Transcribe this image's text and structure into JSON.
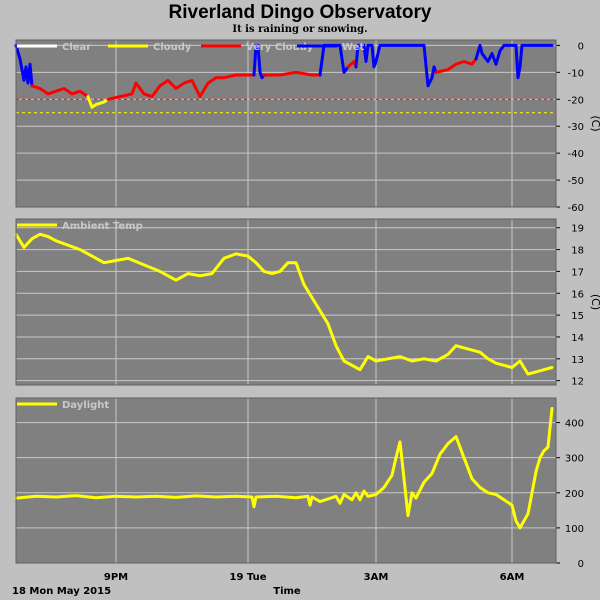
{
  "header": {
    "title": "Riverland Dingo Observatory",
    "subtitle": "It is raining or snowing."
  },
  "footer": {
    "date_label": "18 Mon May 2015",
    "xlabel": "Time"
  },
  "colors": {
    "background": "#c0c0c0",
    "plot": "#808080",
    "grid": "#c8c8c8",
    "clear": "#ffffff",
    "cloudy": "#ffff00",
    "very_cloudy": "#ff0000",
    "wet": "#0000ff",
    "ambient": "#ffff00",
    "daylight": "#ffff00"
  },
  "chart_data": [
    {
      "type": "line",
      "panel": "sky",
      "x_unit": "hours since 18:00",
      "xlim": [
        0,
        13.5
      ],
      "x_ticks": [
        {
          "x": 2.5,
          "label": "9PM"
        },
        {
          "x": 5.8,
          "label": "19 Tue"
        },
        {
          "x": 9.0,
          "label": "3AM"
        },
        {
          "x": 12.4,
          "label": "6AM"
        }
      ],
      "ylim": [
        -60,
        2
      ],
      "y_ticks": [
        0,
        -10,
        -20,
        -30,
        -40,
        -50,
        -60
      ],
      "ylabel": "(°C)",
      "ylabel_visible": "(C)",
      "thresholds": [
        {
          "value": -20,
          "color": "#ff0000"
        },
        {
          "value": -25,
          "color": "#ffff00"
        }
      ],
      "legend": [
        "Clear",
        "Cloudy",
        "Very Cloudy",
        "Wet"
      ],
      "series": [
        {
          "name": "Wet",
          "color": "#0000ff",
          "x": [
            0.0,
            0.1,
            0.2,
            0.25,
            0.3,
            0.35,
            0.4
          ],
          "y": [
            0,
            -5,
            -13,
            -8,
            -14,
            -7,
            -15
          ]
        },
        {
          "name": "Very Cloudy",
          "color": "#ff0000",
          "x": [
            0.4,
            0.6,
            0.8,
            1.0,
            1.2,
            1.4,
            1.6,
            1.8
          ],
          "y": [
            -15,
            -16,
            -18,
            -17,
            -16,
            -18,
            -17,
            -19
          ]
        },
        {
          "name": "Cloudy",
          "color": "#ffff00",
          "x": [
            1.8,
            1.9,
            2.0,
            2.2,
            2.3
          ],
          "y": [
            -19,
            -23,
            -22,
            -21,
            -20
          ]
        },
        {
          "name": "Very Cloudy",
          "color": "#ff0000",
          "x": [
            2.3,
            2.6,
            2.9,
            3.0,
            3.2,
            3.4,
            3.6,
            3.8,
            4.0,
            4.2,
            4.4,
            4.6,
            4.8,
            5.0,
            5.2,
            5.5,
            5.8,
            5.95
          ],
          "y": [
            -20,
            -19,
            -18,
            -14,
            -18,
            -19,
            -15,
            -13,
            -16,
            -14,
            -13,
            -19,
            -14,
            -12,
            -12,
            -11,
            -11,
            -11
          ]
        },
        {
          "name": "Wet",
          "color": "#0000ff",
          "x": [
            5.95,
            6.0,
            6.05,
            6.1,
            6.15,
            6.2
          ],
          "y": [
            -11,
            0,
            0,
            -10,
            -12,
            -11
          ]
        },
        {
          "name": "Very Cloudy",
          "color": "#ff0000",
          "x": [
            6.2,
            6.6,
            7.0,
            7.4,
            7.6
          ],
          "y": [
            -11,
            -11,
            -10,
            -11,
            -11
          ]
        },
        {
          "name": "Wet",
          "color": "#0000ff",
          "x": [
            7.6,
            7.7,
            8.1,
            8.2,
            8.3
          ],
          "y": [
            -11,
            0,
            0,
            -10,
            -8
          ]
        },
        {
          "name": "Very Cloudy",
          "color": "#ff0000",
          "x": [
            8.3,
            8.45,
            8.5
          ],
          "y": [
            -8,
            -6,
            -8
          ]
        },
        {
          "name": "Wet",
          "color": "#0000ff",
          "x": [
            8.5,
            8.55,
            8.7,
            8.75,
            8.8,
            8.9,
            8.95,
            9.0,
            9.1,
            9.15,
            9.2,
            10.2,
            10.3,
            10.4,
            10.45,
            10.5
          ],
          "y": [
            -8,
            0,
            0,
            -6,
            0,
            0,
            -8,
            -6,
            0,
            0,
            0,
            0,
            -15,
            -12,
            -8,
            -10
          ]
        },
        {
          "name": "Very Cloudy",
          "color": "#ff0000",
          "x": [
            10.5,
            10.8,
            11.0,
            11.2,
            11.4,
            11.5
          ],
          "y": [
            -10,
            -9,
            -7,
            -6,
            -7,
            -5
          ]
        },
        {
          "name": "Wet",
          "color": "#0000ff",
          "x": [
            11.5,
            11.6,
            11.65,
            11.7,
            11.8,
            11.9,
            12.0,
            12.1,
            12.2,
            12.5,
            12.55,
            12.6,
            12.65,
            12.7,
            13.3,
            13.4
          ],
          "y": [
            -5,
            0,
            -3,
            -4,
            -6,
            -3,
            -7,
            -2,
            0,
            0,
            -12,
            -8,
            0,
            0,
            0,
            0
          ]
        }
      ]
    },
    {
      "type": "line",
      "panel": "ambient",
      "x_unit": "hours since 18:00",
      "xlim": [
        0,
        13.5
      ],
      "ylim": [
        11.8,
        19.4
      ],
      "y_ticks": [
        12,
        13,
        14,
        15,
        16,
        17,
        18,
        19
      ],
      "ylabel": "(°C)",
      "ylabel_visible": "(C)",
      "legend": [
        "Ambient Temp"
      ],
      "series": [
        {
          "name": "Ambient Temp",
          "color": "#ffff00",
          "x": [
            0.0,
            0.2,
            0.4,
            0.6,
            0.8,
            1.0,
            1.3,
            1.6,
            1.9,
            2.2,
            2.5,
            2.8,
            3.2,
            3.6,
            4.0,
            4.3,
            4.6,
            4.9,
            5.2,
            5.5,
            5.8,
            6.0,
            6.2,
            6.4,
            6.6,
            6.8,
            7.0,
            7.2,
            7.4,
            7.6,
            7.8,
            8.0,
            8.2,
            8.4,
            8.6,
            8.8,
            9.0,
            9.3,
            9.6,
            9.9,
            10.2,
            10.5,
            10.8,
            11.0,
            11.2,
            11.4,
            11.6,
            11.8,
            12.0,
            12.2,
            12.4,
            12.6,
            12.8,
            13.0,
            13.2,
            13.4
          ],
          "y": [
            18.7,
            18.1,
            18.5,
            18.7,
            18.6,
            18.4,
            18.2,
            18.0,
            17.7,
            17.4,
            17.5,
            17.6,
            17.3,
            17.0,
            16.6,
            16.9,
            16.8,
            16.9,
            17.6,
            17.8,
            17.7,
            17.4,
            17.0,
            16.9,
            17.0,
            17.4,
            17.4,
            16.4,
            15.8,
            15.2,
            14.6,
            13.6,
            12.9,
            12.7,
            12.5,
            13.1,
            12.9,
            13.0,
            13.1,
            12.9,
            13.0,
            12.9,
            13.2,
            13.6,
            13.5,
            13.4,
            13.3,
            13.0,
            12.8,
            12.7,
            12.6,
            12.9,
            12.3,
            12.4,
            12.5,
            12.6
          ]
        }
      ]
    },
    {
      "type": "line",
      "panel": "daylight",
      "x_unit": "hours since 18:00",
      "xlim": [
        0,
        13.5
      ],
      "ylim": [
        0,
        470
      ],
      "y_ticks": [
        0,
        100,
        200,
        300,
        400
      ],
      "legend": [
        "Daylight"
      ],
      "series": [
        {
          "name": "Daylight",
          "color": "#ffff00",
          "x": [
            0.0,
            0.5,
            1.0,
            1.5,
            2.0,
            2.5,
            3.0,
            3.5,
            4.0,
            4.5,
            5.0,
            5.5,
            5.9,
            5.95,
            6.0,
            6.5,
            7.0,
            7.3,
            7.35,
            7.4,
            7.6,
            8.0,
            8.1,
            8.2,
            8.4,
            8.5,
            8.6,
            8.7,
            8.8,
            9.0,
            9.2,
            9.4,
            9.5,
            9.6,
            9.7,
            9.8,
            9.9,
            10.0,
            10.2,
            10.4,
            10.6,
            10.8,
            11.0,
            11.2,
            11.4,
            11.6,
            11.8,
            12.0,
            12.2,
            12.4,
            12.5,
            12.6,
            12.8,
            13.0,
            13.1,
            13.2,
            13.3,
            13.4
          ],
          "y": [
            185,
            190,
            188,
            192,
            186,
            190,
            188,
            190,
            187,
            191,
            188,
            190,
            188,
            160,
            188,
            190,
            186,
            190,
            165,
            188,
            175,
            190,
            170,
            195,
            180,
            200,
            180,
            205,
            190,
            195,
            215,
            250,
            300,
            345,
            240,
            135,
            200,
            185,
            230,
            255,
            310,
            340,
            360,
            300,
            240,
            215,
            200,
            195,
            180,
            165,
            120,
            100,
            140,
            260,
            300,
            320,
            330,
            440
          ]
        }
      ]
    }
  ]
}
